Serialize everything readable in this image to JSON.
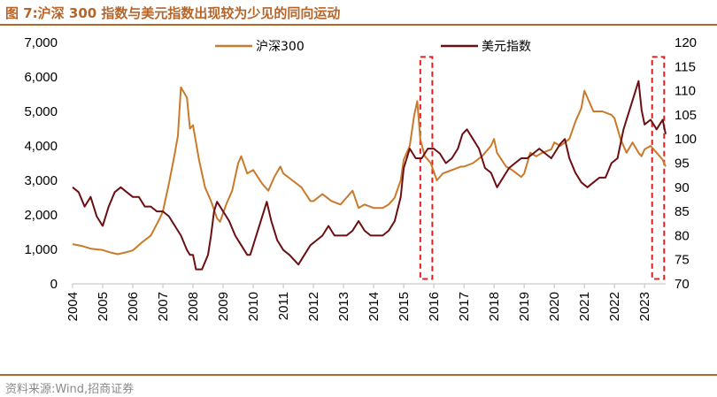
{
  "title": "图 7:沪深 300 指数与美元指数出现较为少见的同向运动",
  "source": "资料来源:Wind,招商证券",
  "chart_data": {
    "type": "line",
    "title": "图 7:沪深 300 指数与美元指数出现较为少见的同向运动",
    "x_range": [
      2004,
      2023.7
    ],
    "x_ticks": [
      "2004",
      "2005",
      "2006",
      "2007",
      "2008",
      "2009",
      "2010",
      "2011",
      "2012",
      "2013",
      "2014",
      "2015",
      "2016",
      "2017",
      "2018",
      "2019",
      "2020",
      "2021",
      "2022",
      "2023"
    ],
    "y_left": {
      "range": [
        0,
        7000
      ],
      "ticks": [
        "0",
        "1,000",
        "2,000",
        "3,000",
        "4,000",
        "5,000",
        "6,000",
        "7,000"
      ]
    },
    "y_right": {
      "range": [
        70,
        120
      ],
      "ticks": [
        "70",
        "75",
        "80",
        "85",
        "90",
        "95",
        "100",
        "105",
        "110",
        "115",
        "120"
      ]
    },
    "legend_position": "top",
    "grid": false,
    "series": [
      {
        "name": "沪深300",
        "axis": "left",
        "color": "#c97a2a",
        "x": [
          2004.0,
          2004.3,
          2004.6,
          2005.0,
          2005.3,
          2005.5,
          2005.8,
          2006.0,
          2006.3,
          2006.6,
          2006.9,
          2007.0,
          2007.2,
          2007.4,
          2007.5,
          2007.6,
          2007.8,
          2007.9,
          2008.0,
          2008.2,
          2008.4,
          2008.6,
          2008.8,
          2008.9,
          2009.1,
          2009.3,
          2009.5,
          2009.6,
          2009.8,
          2010.0,
          2010.3,
          2010.5,
          2010.7,
          2010.9,
          2011.0,
          2011.3,
          2011.6,
          2011.9,
          2012.0,
          2012.3,
          2012.6,
          2012.9,
          2013.1,
          2013.3,
          2013.5,
          2013.7,
          2014.0,
          2014.3,
          2014.5,
          2014.7,
          2014.9,
          2015.0,
          2015.2,
          2015.35,
          2015.45,
          2015.55,
          2015.7,
          2015.9,
          2016.1,
          2016.3,
          2016.6,
          2016.9,
          2017.0,
          2017.3,
          2017.6,
          2017.9,
          2018.0,
          2018.1,
          2018.4,
          2018.6,
          2018.9,
          2019.0,
          2019.2,
          2019.4,
          2019.6,
          2019.9,
          2020.0,
          2020.2,
          2020.5,
          2020.7,
          2020.9,
          2021.0,
          2021.1,
          2021.3,
          2021.6,
          2021.9,
          2022.0,
          2022.2,
          2022.4,
          2022.6,
          2022.8,
          2022.9,
          2023.0,
          2023.2,
          2023.4,
          2023.6,
          2023.7
        ],
        "values": [
          1150,
          1100,
          1020,
          980,
          900,
          860,
          920,
          970,
          1200,
          1400,
          1900,
          2100,
          2900,
          3800,
          4300,
          5700,
          5400,
          4500,
          4600,
          3600,
          2800,
          2400,
          1900,
          1800,
          2300,
          2700,
          3500,
          3700,
          3200,
          3300,
          2900,
          2700,
          3100,
          3400,
          3200,
          3000,
          2800,
          2400,
          2400,
          2600,
          2400,
          2300,
          2500,
          2700,
          2200,
          2300,
          2200,
          2200,
          2300,
          2500,
          3000,
          3600,
          4000,
          4900,
          5300,
          4200,
          3700,
          3500,
          3000,
          3200,
          3300,
          3400,
          3400,
          3500,
          3700,
          4000,
          4200,
          3800,
          3400,
          3300,
          3100,
          3200,
          3800,
          3700,
          3800,
          3900,
          4100,
          4000,
          4200,
          4700,
          5100,
          5600,
          5400,
          5000,
          5000,
          4900,
          4800,
          4200,
          3800,
          4100,
          3800,
          3700,
          3900,
          4000,
          3800,
          3600,
          3400
        ]
      },
      {
        "name": "美元指数",
        "axis": "right",
        "color": "#6b0f12",
        "x": [
          2004.0,
          2004.2,
          2004.4,
          2004.6,
          2004.8,
          2005.0,
          2005.2,
          2005.4,
          2005.6,
          2005.8,
          2006.0,
          2006.2,
          2006.4,
          2006.6,
          2006.8,
          2007.0,
          2007.2,
          2007.4,
          2007.6,
          2007.8,
          2007.9,
          2008.0,
          2008.1,
          2008.3,
          2008.5,
          2008.6,
          2008.7,
          2008.8,
          2009.0,
          2009.2,
          2009.4,
          2009.6,
          2009.8,
          2009.9,
          2010.1,
          2010.3,
          2010.45,
          2010.6,
          2010.8,
          2011.0,
          2011.2,
          2011.35,
          2011.5,
          2011.7,
          2011.9,
          2012.1,
          2012.3,
          2012.5,
          2012.7,
          2012.9,
          2013.1,
          2013.3,
          2013.5,
          2013.7,
          2013.9,
          2014.1,
          2014.3,
          2014.5,
          2014.7,
          2014.9,
          2015.0,
          2015.2,
          2015.4,
          2015.6,
          2015.8,
          2016.0,
          2016.2,
          2016.4,
          2016.6,
          2016.8,
          2016.95,
          2017.1,
          2017.3,
          2017.5,
          2017.7,
          2017.9,
          2018.1,
          2018.3,
          2018.5,
          2018.7,
          2018.9,
          2019.1,
          2019.3,
          2019.5,
          2019.7,
          2019.9,
          2020.1,
          2020.2,
          2020.35,
          2020.5,
          2020.7,
          2020.9,
          2021.1,
          2021.3,
          2021.5,
          2021.7,
          2021.9,
          2022.1,
          2022.3,
          2022.5,
          2022.7,
          2022.8,
          2022.9,
          2023.0,
          2023.2,
          2023.3,
          2023.4,
          2023.5,
          2023.6,
          2023.7
        ],
        "values": [
          90,
          89,
          86,
          88,
          84,
          82,
          86,
          89,
          90,
          89,
          88,
          88,
          86,
          86,
          85,
          85,
          84,
          82,
          80,
          77,
          76,
          76,
          73,
          73,
          76,
          80,
          85,
          87,
          85,
          83,
          80,
          78,
          76,
          76,
          80,
          84,
          87,
          83,
          79,
          77,
          76,
          75,
          74,
          76,
          78,
          79,
          80,
          82,
          80,
          80,
          80,
          81,
          83,
          81,
          80,
          80,
          80,
          81,
          83,
          88,
          94,
          98,
          96,
          96,
          98,
          98,
          97,
          95,
          96,
          98,
          101,
          102,
          100,
          98,
          94,
          93,
          90,
          92,
          94,
          95,
          96,
          96,
          97,
          98,
          97,
          96,
          98,
          99,
          100,
          96,
          93,
          91,
          90,
          91,
          92,
          92,
          95,
          96,
          102,
          106,
          110,
          112,
          106,
          103,
          104,
          103,
          102,
          103,
          104,
          101
        ]
      }
    ],
    "annotations": [
      {
        "type": "dashed-box",
        "color": "#e02020",
        "x_from": 2015.55,
        "x_to": 2015.95,
        "y_from": 71,
        "y_to": 117
      },
      {
        "type": "dashed-box",
        "color": "#e02020",
        "x_from": 2023.25,
        "x_to": 2023.65,
        "y_from": 71,
        "y_to": 117
      }
    ]
  }
}
